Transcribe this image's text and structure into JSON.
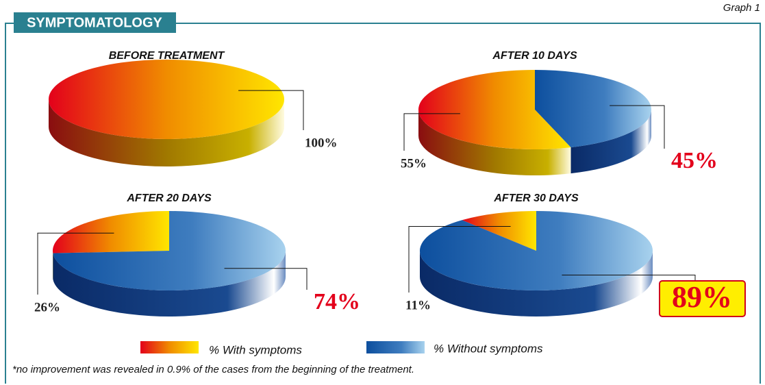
{
  "header": {
    "title": "SYMPTOMATOLOGY",
    "label": "Graph 1"
  },
  "footnote": "*no improvement was revealed in 0.9% of the cases from the beginning of the treatment.",
  "chart_data": [
    {
      "type": "pie",
      "title": "BEFORE TREATMENT",
      "categories": [
        "% With symptoms"
      ],
      "values": [
        100
      ],
      "value_labels": [
        "100%"
      ],
      "colors": [
        "#e8001c"
      ]
    },
    {
      "type": "pie",
      "title": "AFTER 10 DAYS",
      "categories": [
        "% With symptoms",
        "% Without symptoms"
      ],
      "values": [
        55,
        45
      ],
      "value_labels": [
        "55%",
        "45%"
      ],
      "colors": [
        "#e8001c",
        "#1f5fa8"
      ]
    },
    {
      "type": "pie",
      "title": "AFTER 20 DAYS",
      "categories": [
        "% With symptoms",
        "% Without symptoms"
      ],
      "values": [
        26,
        74
      ],
      "value_labels": [
        "26%",
        "74%"
      ],
      "colors": [
        "#e8001c",
        "#1f5fa8"
      ]
    },
    {
      "type": "pie",
      "title": "AFTER 30 DAYS",
      "categories": [
        "% With symptoms",
        "% Without symptoms"
      ],
      "values": [
        11,
        89
      ],
      "value_labels": [
        "11%",
        "89%"
      ],
      "colors": [
        "#e8001c",
        "#1f5fa8"
      ]
    }
  ]
}
